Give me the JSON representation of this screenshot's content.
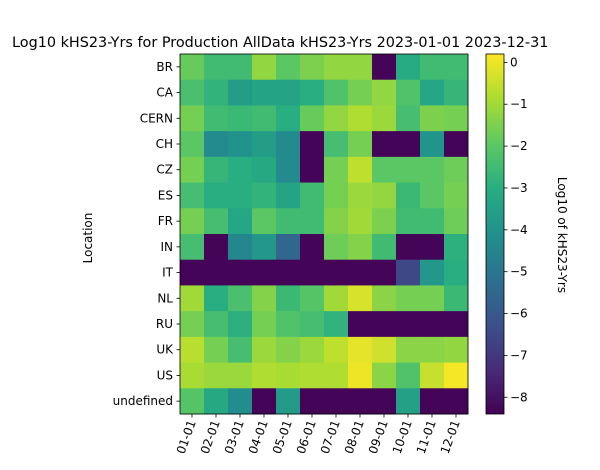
{
  "chart_data": {
    "type": "heatmap",
    "title": "Log10 kHS23-Yrs for Production AllData kHS23-Yrs 2023-01-01 2023-12-31",
    "ylabel": "Location",
    "colorbar_label": "Log10 of kHS23-Yrs",
    "colormap": "viridis",
    "zlim": [
      -8.4,
      0.2
    ],
    "colorbar_ticks": [
      -8,
      -7,
      -6,
      -5,
      -4,
      -3,
      -2,
      -1,
      0
    ],
    "rows": [
      "BR",
      "CA",
      "CERN",
      "CH",
      "CZ",
      "ES",
      "FR",
      "IN",
      "IT",
      "NL",
      "RU",
      "UK",
      "US",
      "undefined"
    ],
    "columns": [
      "01-01",
      "02-01",
      "03-01",
      "04-01",
      "05-01",
      "06-01",
      "07-01",
      "08-01",
      "09-01",
      "10-01",
      "11-01",
      "12-01"
    ],
    "values": [
      [
        -1.8,
        -2.5,
        -2.5,
        -1.2,
        -2.0,
        -1.5,
        -1.2,
        -1.2,
        -8.3,
        -3.1,
        -2.5,
        -2.5
      ],
      [
        -2.3,
        -2.8,
        -3.6,
        -3.4,
        -3.4,
        -3.0,
        -2.2,
        -1.6,
        -1.2,
        -2.2,
        -3.3,
        -2.7
      ],
      [
        -1.6,
        -2.5,
        -2.6,
        -2.5,
        -3.0,
        -1.8,
        -1.2,
        -0.8,
        -1.1,
        -2.4,
        -1.5,
        -1.6
      ],
      [
        -2.0,
        -4.3,
        -4.0,
        -3.6,
        -4.3,
        -8.3,
        -2.4,
        -1.6,
        -8.3,
        -8.3,
        -3.9,
        -8.3
      ],
      [
        -1.6,
        -2.7,
        -3.0,
        -3.2,
        -4.3,
        -8.3,
        -1.6,
        -0.6,
        -2.0,
        -2.0,
        -2.0,
        -1.7
      ],
      [
        -2.4,
        -3.0,
        -3.0,
        -2.8,
        -3.4,
        -2.5,
        -1.6,
        -1.1,
        -1.2,
        -2.6,
        -2.0,
        -1.6
      ],
      [
        -1.6,
        -2.4,
        -3.3,
        -2.0,
        -2.5,
        -2.5,
        -1.4,
        -1.0,
        -1.5,
        -2.5,
        -2.5,
        -1.7
      ],
      [
        -2.4,
        -8.3,
        -4.4,
        -3.8,
        -5.5,
        -8.3,
        -1.7,
        -1.4,
        -2.5,
        -8.3,
        -8.3,
        -2.9
      ],
      [
        -8.3,
        -8.3,
        -8.3,
        -8.3,
        -8.3,
        -8.3,
        -8.3,
        -8.3,
        -8.3,
        -6.5,
        -3.8,
        -3.0
      ],
      [
        -1.0,
        -3.0,
        -2.3,
        -1.4,
        -2.6,
        -2.1,
        -1.0,
        -0.3,
        -1.3,
        -1.6,
        -1.6,
        -2.6
      ],
      [
        -1.6,
        -2.4,
        -2.9,
        -1.6,
        -2.2,
        -2.4,
        -2.8,
        -8.3,
        -8.3,
        -8.3,
        -8.3,
        -8.3
      ],
      [
        -0.7,
        -1.6,
        -2.4,
        -1.1,
        -1.4,
        -1.1,
        -0.6,
        -0.1,
        -0.4,
        -1.3,
        -1.3,
        -1.2
      ],
      [
        -0.9,
        -1.1,
        -1.1,
        -0.8,
        -0.9,
        -0.8,
        -0.8,
        0.0,
        -1.3,
        -2.2,
        -0.5,
        0.1
      ],
      [
        -2.1,
        -3.2,
        -4.2,
        -8.3,
        -3.7,
        -8.3,
        -8.3,
        -8.3,
        -8.3,
        -3.5,
        -8.3,
        -8.3
      ]
    ]
  }
}
